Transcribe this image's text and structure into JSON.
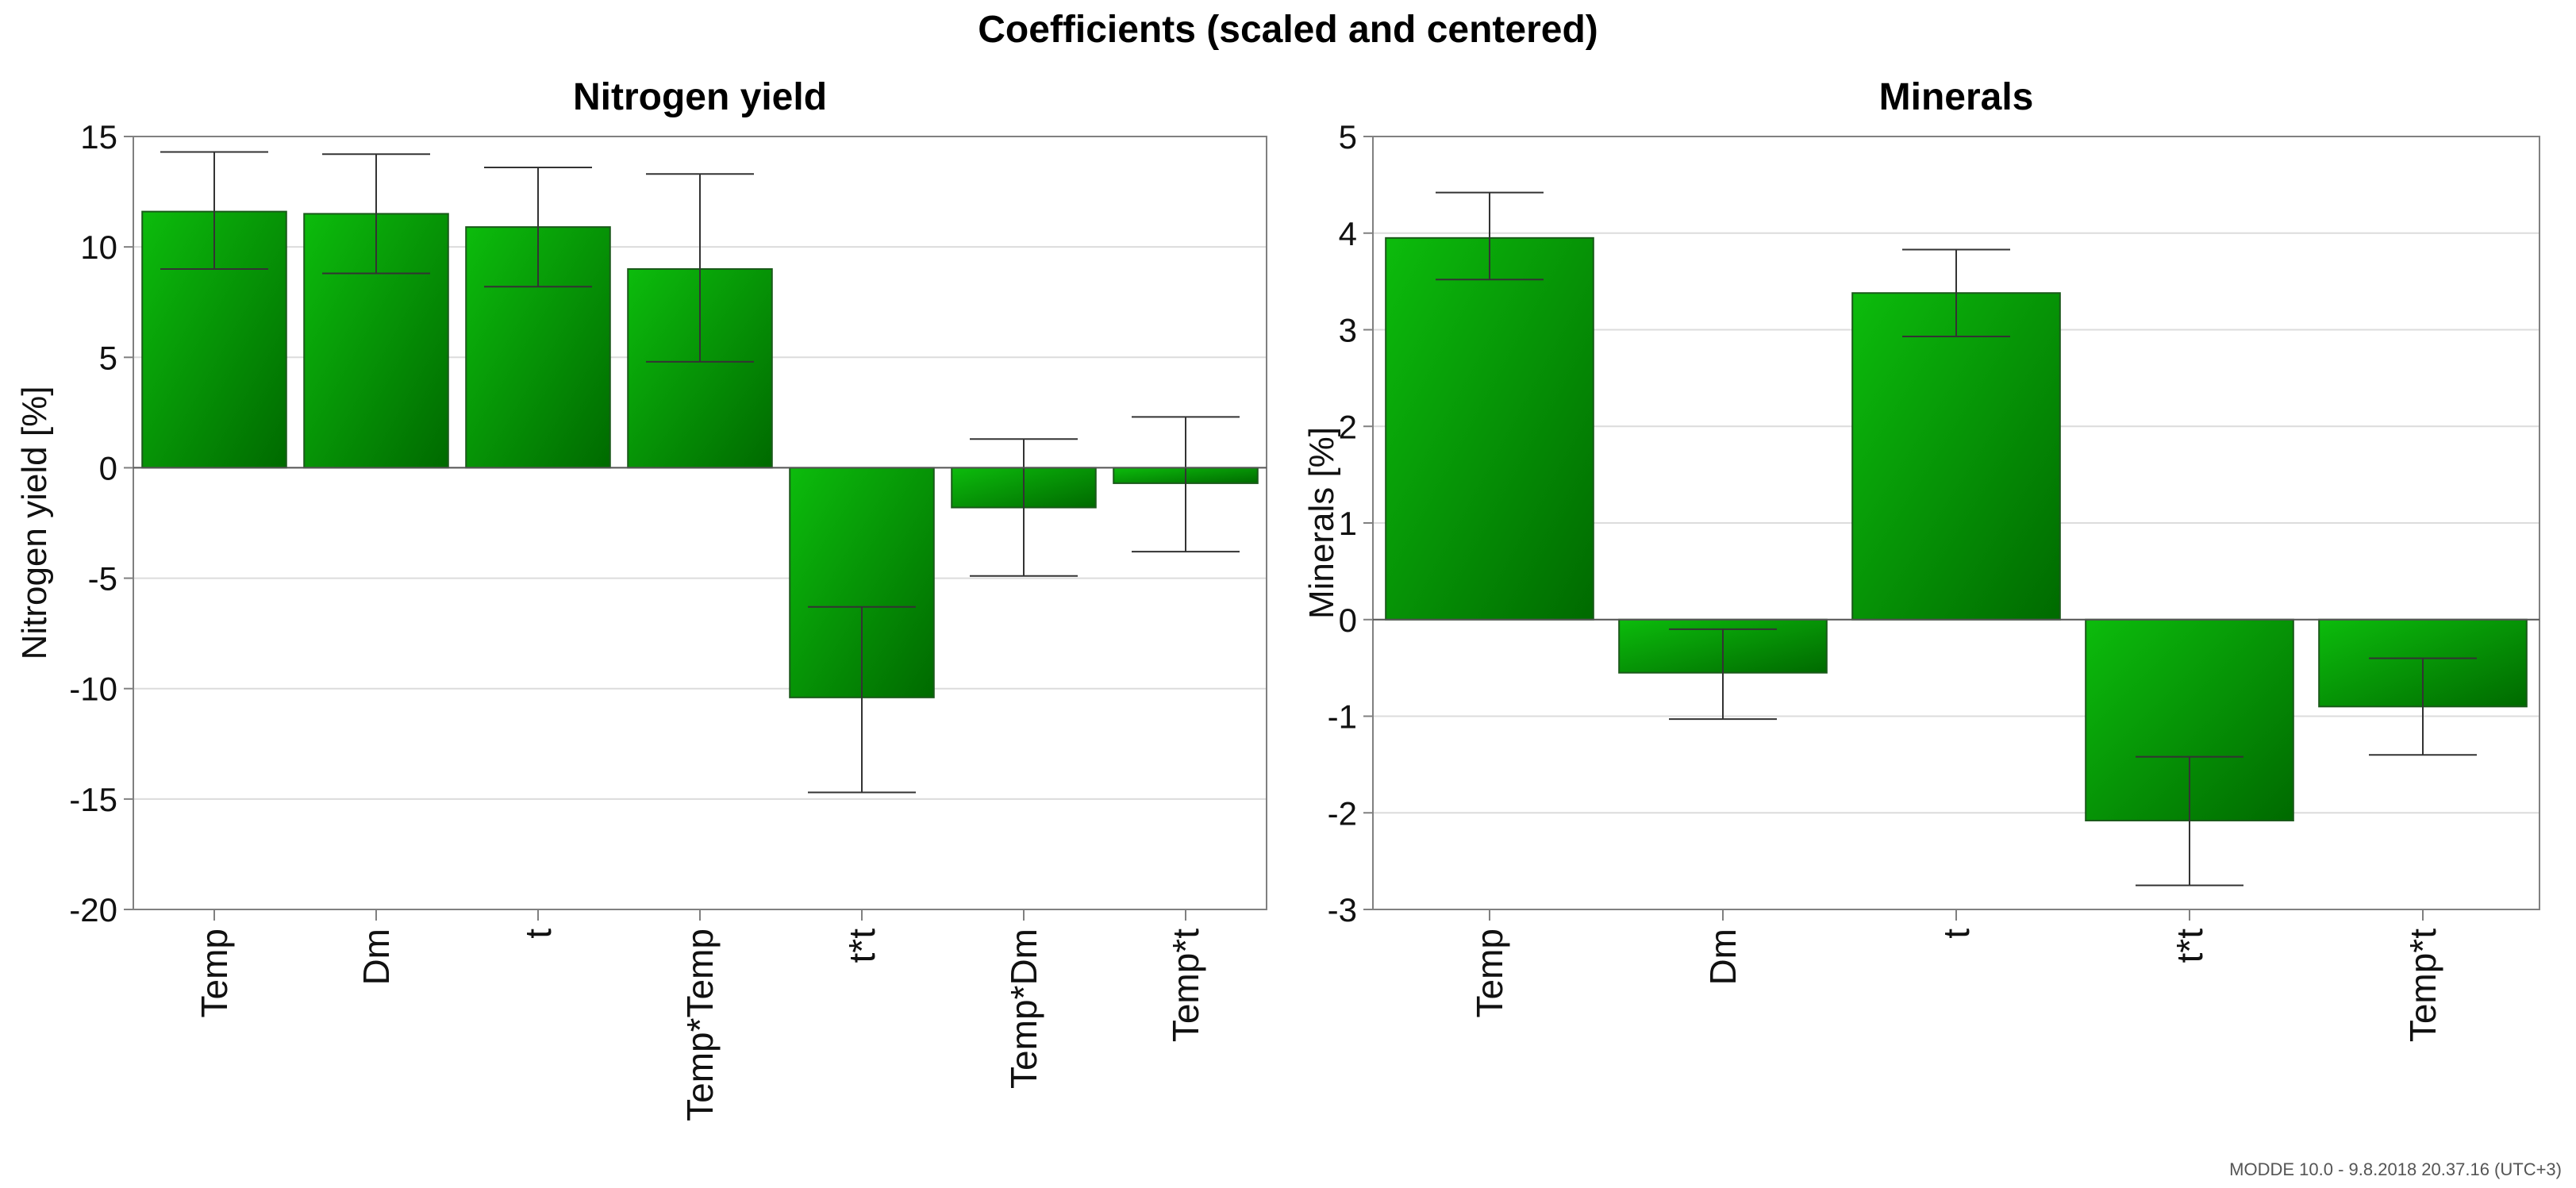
{
  "title": "Coefficients (scaled and centered)",
  "footer": "MODDE 10.0 - 9.8.2018 20.37.16 (UTC+3)",
  "colors": {
    "bar_light": "#0ab40a",
    "bar_dark": "#006e00",
    "bar_edge": "#1a5a1a",
    "grid": "#dcdcdc",
    "axis": "#808080",
    "errorbar": "#333333"
  },
  "chart_data": [
    {
      "type": "bar",
      "title": "Nitrogen yield",
      "xlabel": "",
      "ylabel": "Nitrogen yield [%]",
      "ylim": [
        -20,
        15
      ],
      "yticks": [
        15,
        10,
        5,
        0,
        -5,
        -10,
        -15,
        -20
      ],
      "categories": [
        "Temp",
        "Dm",
        "t",
        "Temp*Temp",
        "t*t",
        "Temp*Dm",
        "Temp*t"
      ],
      "values": [
        11.6,
        11.5,
        10.9,
        9.0,
        -10.4,
        -1.8,
        -0.7
      ],
      "error_low": [
        9.0,
        8.8,
        8.2,
        4.8,
        -14.7,
        -4.9,
        -3.8
      ],
      "error_high": [
        14.3,
        14.2,
        13.6,
        13.3,
        -6.3,
        1.3,
        2.3
      ],
      "grid": true
    },
    {
      "type": "bar",
      "title": "Minerals",
      "xlabel": "",
      "ylabel": "Minerals [%]",
      "ylim": [
        -3,
        5
      ],
      "yticks": [
        5,
        4,
        3,
        2,
        1,
        0,
        -1,
        -2,
        -3
      ],
      "categories": [
        "Temp",
        "Dm",
        "t",
        "t*t",
        "Temp*t"
      ],
      "values": [
        3.95,
        -0.55,
        3.38,
        -2.08,
        -0.9
      ],
      "error_low": [
        3.52,
        -1.03,
        2.93,
        -2.75,
        -1.4
      ],
      "error_high": [
        4.42,
        -0.1,
        3.83,
        -1.42,
        -0.4
      ],
      "grid": true
    }
  ]
}
